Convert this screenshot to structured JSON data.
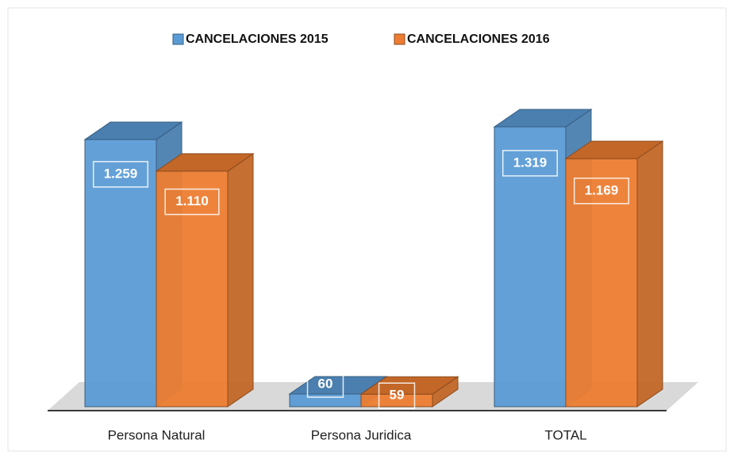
{
  "chart_data": {
    "type": "bar3d",
    "categories": [
      "Persona Natural",
      "Persona Juridica",
      "TOTAL"
    ],
    "series": [
      {
        "name": "CANCELACIONES 2015",
        "color": "#5b9bd5",
        "values": [
          1259,
          60,
          1319
        ],
        "value_labels": [
          "1.259",
          "60",
          "1.319"
        ]
      },
      {
        "name": "CANCELACIONES 2016",
        "color": "#ed7d31",
        "values": [
          1110,
          59,
          1169
        ],
        "value_labels": [
          "1.110",
          "59",
          "1.169"
        ]
      }
    ],
    "legend": "top"
  }
}
